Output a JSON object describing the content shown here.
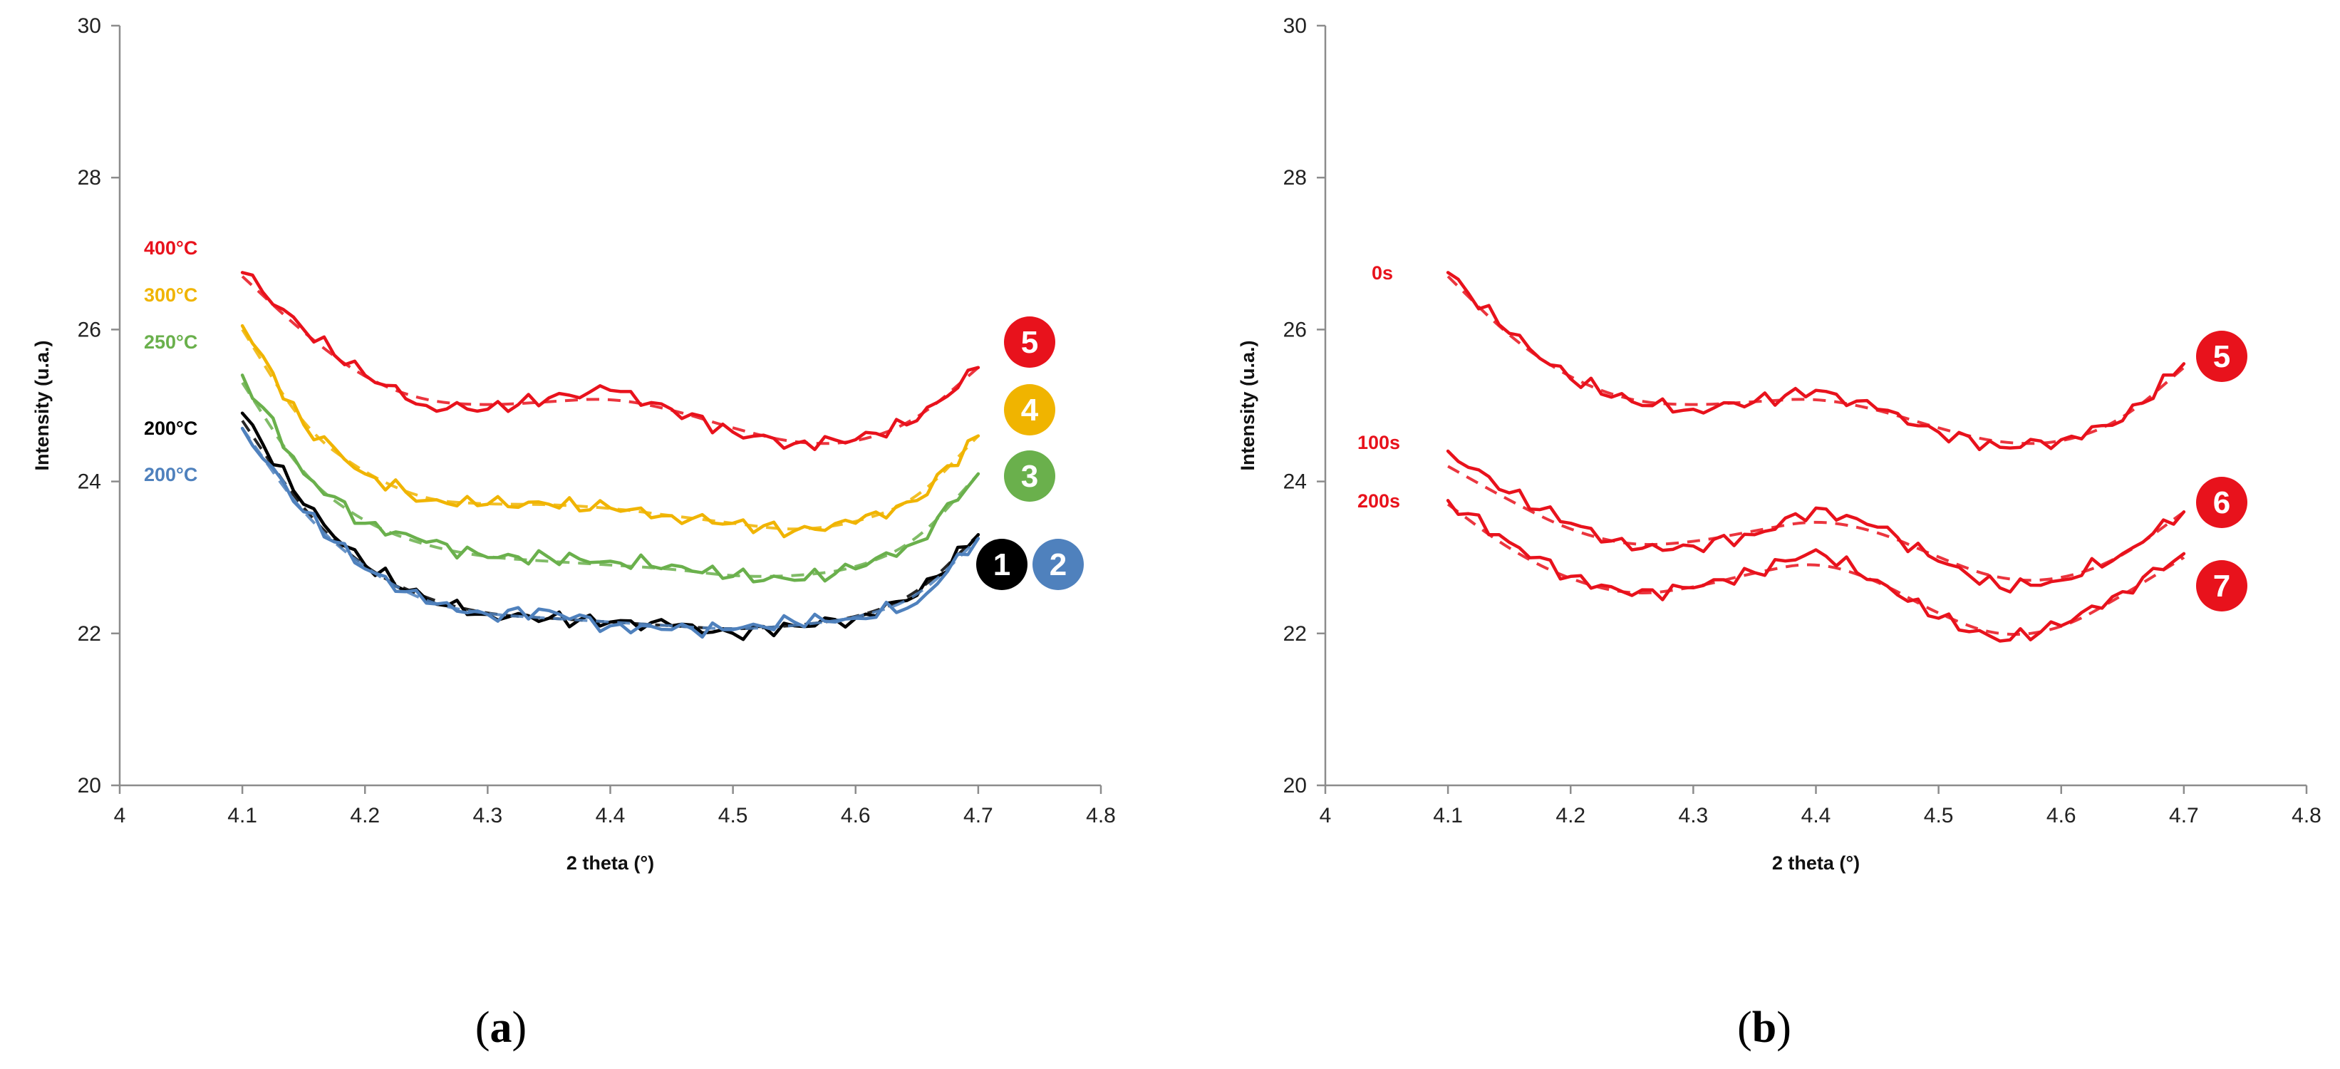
{
  "chart_data": [
    {
      "panel_label": "a",
      "type": "line",
      "title": "",
      "xlabel": "2 theta (°)",
      "ylabel": "Intensity (u.a.)",
      "xlim": [
        4,
        4.8
      ],
      "ylim": [
        20,
        30
      ],
      "xticks": [
        "4",
        "4.1",
        "4.2",
        "4.3",
        "4.4",
        "4.5",
        "4.6",
        "4.7",
        "4.8"
      ],
      "yticks": [
        "20",
        "22",
        "24",
        "26",
        "28",
        "30"
      ],
      "grid": false,
      "legend": "none",
      "x": [
        4.1,
        4.15,
        4.2,
        4.25,
        4.3,
        4.35,
        4.4,
        4.45,
        4.5,
        4.55,
        4.6,
        4.65,
        4.7
      ],
      "series": [
        {
          "name": "1",
          "label": "200°C",
          "badge": "1",
          "color": "#000000",
          "measured": [
            24.9,
            23.7,
            22.9,
            22.45,
            22.25,
            22.2,
            22.15,
            22.1,
            22.0,
            22.1,
            22.2,
            22.5,
            23.3
          ],
          "fit": [
            24.8,
            23.6,
            22.85,
            22.45,
            22.25,
            22.2,
            22.15,
            22.1,
            22.05,
            22.1,
            22.2,
            22.5,
            23.3
          ]
        },
        {
          "name": "2",
          "label": "200°C",
          "badge": "2",
          "color": "#4f81bd",
          "measured": [
            24.7,
            23.6,
            22.85,
            22.4,
            22.25,
            22.3,
            22.1,
            22.05,
            22.05,
            22.15,
            22.2,
            22.4,
            23.25
          ],
          "fit": [
            24.7,
            23.55,
            22.85,
            22.4,
            22.25,
            22.2,
            22.15,
            22.1,
            22.05,
            22.1,
            22.2,
            22.45,
            23.25
          ]
        },
        {
          "name": "3",
          "label": "250°C",
          "badge": "3",
          "color": "#6ab04c",
          "measured": [
            25.4,
            24.1,
            23.45,
            23.2,
            23.0,
            23.0,
            22.95,
            22.9,
            22.75,
            22.7,
            22.85,
            23.2,
            24.1
          ],
          "fit": [
            25.3,
            24.05,
            23.45,
            23.15,
            23.0,
            22.95,
            22.9,
            22.85,
            22.75,
            22.75,
            22.85,
            23.2,
            24.1
          ]
        },
        {
          "name": "4",
          "label": "300°C",
          "badge": "4",
          "color": "#f0b400",
          "measured": [
            26.05,
            24.75,
            24.1,
            23.75,
            23.7,
            23.7,
            23.65,
            23.55,
            23.45,
            23.35,
            23.45,
            23.75,
            24.6
          ],
          "fit": [
            26.0,
            24.7,
            24.1,
            23.75,
            23.7,
            23.7,
            23.65,
            23.55,
            23.45,
            23.35,
            23.45,
            23.75,
            24.6
          ]
        },
        {
          "name": "5",
          "label": "400°C",
          "badge": "5",
          "color": "#e8121c",
          "measured": [
            26.75,
            26.0,
            25.4,
            25.0,
            24.95,
            25.1,
            25.2,
            24.95,
            24.65,
            24.5,
            24.55,
            24.8,
            25.5
          ],
          "fit": [
            26.7,
            25.95,
            25.35,
            25.05,
            25.0,
            25.05,
            25.1,
            24.95,
            24.7,
            24.5,
            24.5,
            24.8,
            25.5
          ]
        }
      ]
    },
    {
      "panel_label": "b",
      "type": "line",
      "title": "",
      "xlabel": "2 theta (°)",
      "ylabel": "Intensity (u.a.)",
      "xlim": [
        4,
        4.8
      ],
      "ylim": [
        20,
        30
      ],
      "xticks": [
        "4",
        "4.1",
        "4.2",
        "4.3",
        "4.4",
        "4.5",
        "4.6",
        "4.7",
        "4.8"
      ],
      "yticks": [
        "20",
        "22",
        "24",
        "26",
        "28",
        "30"
      ],
      "grid": false,
      "legend": "none",
      "x": [
        4.1,
        4.15,
        4.2,
        4.25,
        4.3,
        4.35,
        4.4,
        4.45,
        4.5,
        4.55,
        4.6,
        4.65,
        4.7
      ],
      "series": [
        {
          "name": "5",
          "label": "0s",
          "badge": "5",
          "color": "#e8121c",
          "measured": [
            26.75,
            25.95,
            25.35,
            25.05,
            24.95,
            25.05,
            25.2,
            24.95,
            24.65,
            24.45,
            24.55,
            24.8,
            25.55
          ],
          "fit": [
            26.7,
            25.9,
            25.35,
            25.05,
            25.0,
            25.05,
            25.1,
            24.95,
            24.7,
            24.5,
            24.5,
            24.8,
            25.5
          ]
        },
        {
          "name": "6",
          "label": "100s",
          "badge": "6",
          "color": "#e8121c",
          "measured": [
            24.4,
            23.85,
            23.45,
            23.1,
            23.15,
            23.3,
            23.65,
            23.4,
            22.95,
            22.6,
            22.7,
            23.05,
            23.6
          ],
          "fit": [
            24.2,
            23.75,
            23.35,
            23.15,
            23.2,
            23.35,
            23.5,
            23.35,
            23.0,
            22.7,
            22.7,
            23.0,
            23.6
          ]
        },
        {
          "name": "7",
          "label": "200s",
          "badge": "7",
          "color": "#e8121c",
          "measured": [
            23.75,
            23.2,
            22.75,
            22.5,
            22.6,
            22.8,
            23.1,
            22.7,
            22.2,
            21.9,
            22.1,
            22.55,
            23.05
          ],
          "fit": [
            23.7,
            23.1,
            22.7,
            22.5,
            22.6,
            22.8,
            22.95,
            22.7,
            22.25,
            21.95,
            22.05,
            22.5,
            23.0
          ]
        }
      ]
    }
  ]
}
